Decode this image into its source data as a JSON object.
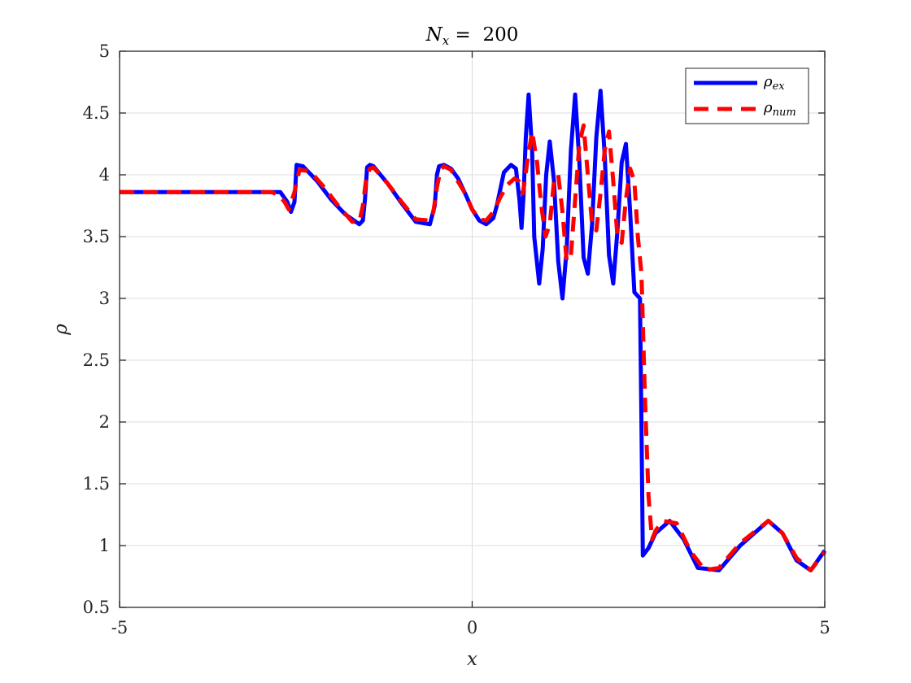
{
  "chart_data": {
    "type": "line",
    "title_main": "N",
    "title_sub": "x",
    "title_rest": " =  200",
    "xlabel": "x",
    "ylabel": "ρ",
    "xlim": [
      -5,
      5
    ],
    "ylim": [
      0.5,
      5
    ],
    "xticks": [
      -5,
      0,
      5
    ],
    "xtick_labels": [
      "-5",
      "0",
      "5"
    ],
    "yticks": [
      0.5,
      1,
      1.5,
      2,
      2.5,
      3,
      3.5,
      4,
      4.5,
      5
    ],
    "ytick_labels": [
      "0.5",
      "1",
      "1.5",
      "2",
      "2.5",
      "3",
      "3.5",
      "4",
      "4.5",
      "5"
    ],
    "grid": true,
    "legend_position": "top-right",
    "series": [
      {
        "name": "ρex",
        "name_main": "ρ",
        "name_sub": "ex",
        "color": "#0000ff",
        "style": "solid",
        "x": [
          -5,
          -2.8,
          -2.72,
          -2.62,
          -2.57,
          -2.52,
          -2.49,
          -2.4,
          -2.2,
          -2.0,
          -1.8,
          -1.6,
          -1.55,
          -1.52,
          -1.49,
          -1.45,
          -1.4,
          -1.2,
          -1.0,
          -0.8,
          -0.6,
          -0.53,
          -0.5,
          -0.47,
          -0.4,
          -0.3,
          -0.2,
          -0.1,
          0.0,
          0.1,
          0.2,
          0.3,
          0.35,
          0.45,
          0.55,
          0.62,
          0.67,
          0.7,
          0.73,
          0.76,
          0.8,
          0.85,
          0.88,
          0.95,
          1.0,
          1.05,
          1.1,
          1.16,
          1.22,
          1.28,
          1.34,
          1.4,
          1.46,
          1.52,
          1.58,
          1.64,
          1.7,
          1.76,
          1.82,
          1.88,
          1.94,
          2.0,
          2.06,
          2.12,
          2.18,
          2.24,
          2.3,
          2.38,
          2.4,
          2.42,
          2.5,
          2.6,
          2.8,
          3.0,
          3.2,
          3.5,
          3.8,
          4.2,
          4.4,
          4.6,
          4.8,
          5.0
        ],
        "y": [
          3.86,
          3.86,
          3.86,
          3.78,
          3.7,
          3.78,
          4.08,
          4.07,
          3.95,
          3.8,
          3.68,
          3.6,
          3.63,
          3.8,
          4.06,
          4.08,
          4.07,
          3.93,
          3.77,
          3.62,
          3.6,
          3.75,
          4.0,
          4.07,
          4.08,
          4.05,
          3.97,
          3.85,
          3.72,
          3.63,
          3.6,
          3.65,
          3.75,
          4.02,
          4.08,
          4.05,
          3.8,
          3.57,
          3.85,
          4.3,
          4.65,
          4.2,
          3.5,
          3.12,
          3.4,
          4.0,
          4.27,
          3.95,
          3.3,
          3.0,
          3.4,
          4.2,
          4.65,
          4.1,
          3.33,
          3.2,
          3.6,
          4.3,
          4.68,
          4.15,
          3.35,
          3.12,
          3.55,
          4.1,
          4.25,
          3.7,
          3.05,
          3.0,
          2.0,
          0.92,
          0.98,
          1.1,
          1.2,
          1.05,
          0.82,
          0.8,
          1.0,
          1.2,
          1.1,
          0.88,
          0.8,
          0.96
        ]
      },
      {
        "name": "ρnum",
        "name_main": "ρ",
        "name_sub": "num",
        "color": "#ff0000",
        "style": "dashed",
        "x": [
          -5,
          -2.85,
          -2.75,
          -2.66,
          -2.6,
          -2.52,
          -2.45,
          -2.3,
          -2.1,
          -1.9,
          -1.7,
          -1.6,
          -1.55,
          -1.5,
          -1.45,
          -1.4,
          -1.2,
          -1.0,
          -0.8,
          -0.6,
          -0.55,
          -0.5,
          -0.45,
          -0.4,
          -0.3,
          -0.1,
          0.0,
          0.1,
          0.2,
          0.3,
          0.4,
          0.5,
          0.6,
          0.66,
          0.72,
          0.78,
          0.85,
          0.92,
          0.98,
          1.04,
          1.1,
          1.16,
          1.22,
          1.28,
          1.34,
          1.4,
          1.46,
          1.52,
          1.58,
          1.64,
          1.7,
          1.76,
          1.82,
          1.88,
          1.94,
          2.0,
          2.06,
          2.12,
          2.18,
          2.24,
          2.3,
          2.35,
          2.4,
          2.45,
          2.5,
          2.55,
          2.6,
          2.7,
          2.9,
          3.1,
          3.3,
          3.5,
          3.8,
          4.2,
          4.4,
          4.6,
          4.8,
          5.0
        ],
        "y": [
          3.86,
          3.86,
          3.84,
          3.78,
          3.72,
          3.86,
          4.04,
          4.03,
          3.9,
          3.75,
          3.62,
          3.62,
          3.75,
          3.98,
          4.05,
          4.06,
          3.93,
          3.78,
          3.64,
          3.63,
          3.7,
          3.9,
          4.04,
          4.07,
          4.04,
          3.85,
          3.72,
          3.64,
          3.63,
          3.7,
          3.82,
          3.92,
          3.97,
          3.95,
          3.85,
          4.1,
          4.35,
          4.1,
          3.75,
          3.5,
          3.6,
          3.95,
          4.0,
          3.7,
          3.3,
          3.35,
          3.8,
          4.25,
          4.4,
          4.0,
          3.6,
          3.55,
          3.85,
          4.2,
          4.35,
          3.95,
          3.5,
          3.45,
          3.8,
          4.05,
          3.95,
          3.5,
          3.2,
          2.2,
          1.4,
          1.05,
          1.12,
          1.2,
          1.18,
          0.95,
          0.8,
          0.82,
          1.02,
          1.2,
          1.1,
          0.9,
          0.8,
          0.95
        ]
      }
    ]
  }
}
